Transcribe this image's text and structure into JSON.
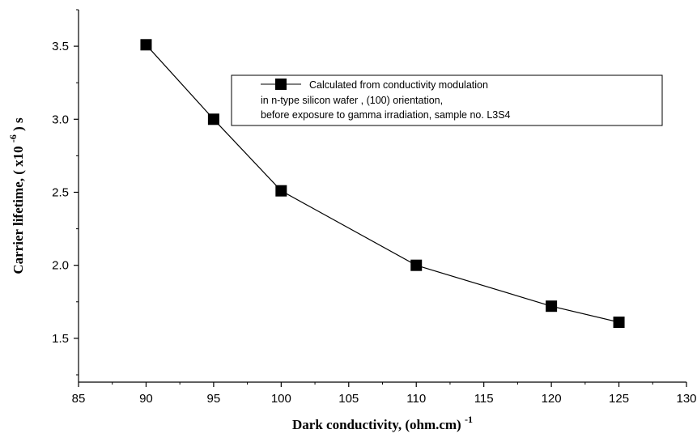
{
  "chart_data": {
    "type": "line",
    "x": [
      90,
      95,
      100,
      110,
      120,
      125
    ],
    "series": [
      {
        "name_lines": [
          "Calculated from conductivity modulation",
          "in n-type silicon wafer , (100) orientation,",
          "before exposure to gamma irradiation, sample no. L3S4"
        ],
        "marker": "square",
        "color": "#000000",
        "values": [
          3.51,
          3.0,
          2.51,
          2.0,
          1.72,
          1.61
        ]
      }
    ],
    "xlabel": "Dark conductivity, (ohm.cm)",
    "xlabel_sup": "-1",
    "ylabel_prefix": "Carrier lifetime, ( x10",
    "ylabel_sup": "-6",
    "ylabel_suffix": ") s",
    "xlim": [
      85,
      130
    ],
    "ylim": [
      1.2,
      3.75
    ],
    "xticks": [
      85,
      90,
      95,
      100,
      105,
      110,
      115,
      120,
      125,
      130
    ],
    "yticks": [
      1.5,
      2.0,
      2.5,
      3.0,
      3.5
    ],
    "xtick_labels": [
      "85",
      "90",
      "95",
      "100",
      "105",
      "110",
      "115",
      "120",
      "125",
      "130"
    ],
    "ytick_labels": [
      "1.5",
      "2.0",
      "2.5",
      "3.0",
      "3.5"
    ],
    "grid": false,
    "legend_position": "top-right"
  }
}
